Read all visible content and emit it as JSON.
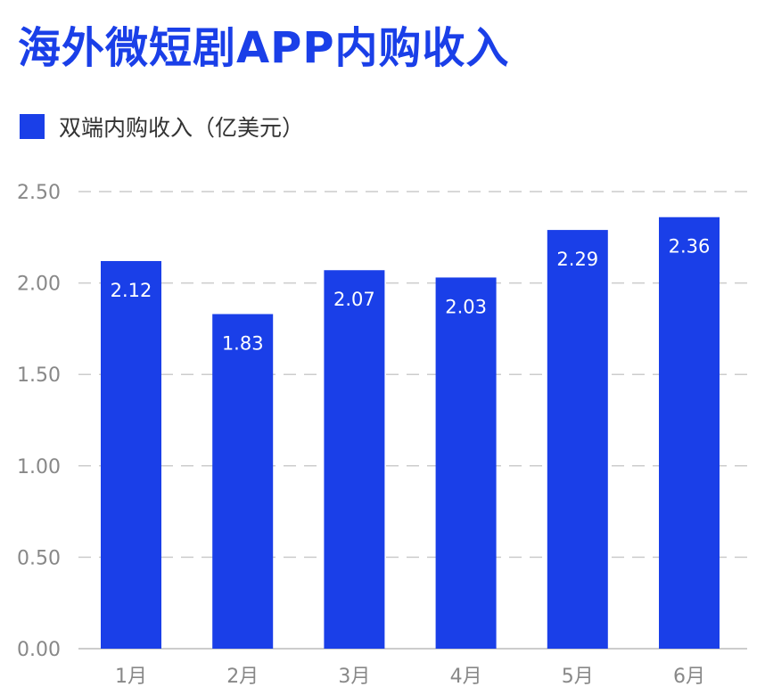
{
  "title": "海外微短剧APP内购收入",
  "colors": {
    "accent": "#1a3fe8",
    "grid": "#cccccc",
    "axis_text": "#888888"
  },
  "chart_data": {
    "type": "bar",
    "title": "海外微短剧APP内购收入",
    "categories": [
      "1月",
      "2月",
      "3月",
      "4月",
      "5月",
      "6月"
    ],
    "series": [
      {
        "name": "双端内购收入（亿美元）",
        "values": [
          2.12,
          1.83,
          2.07,
          2.03,
          2.29,
          2.36
        ],
        "color": "#1a3fe8"
      }
    ],
    "value_labels": [
      "2.12",
      "1.83",
      "2.07",
      "2.03",
      "2.29",
      "2.36"
    ],
    "yticks": [
      "0.00",
      "0.50",
      "1.00",
      "1.50",
      "2.00",
      "2.50"
    ],
    "ylim": [
      0,
      2.5
    ],
    "grid": true,
    "grid_style": "dashed",
    "legend_position": "top-left",
    "xlabel": "",
    "ylabel": ""
  }
}
